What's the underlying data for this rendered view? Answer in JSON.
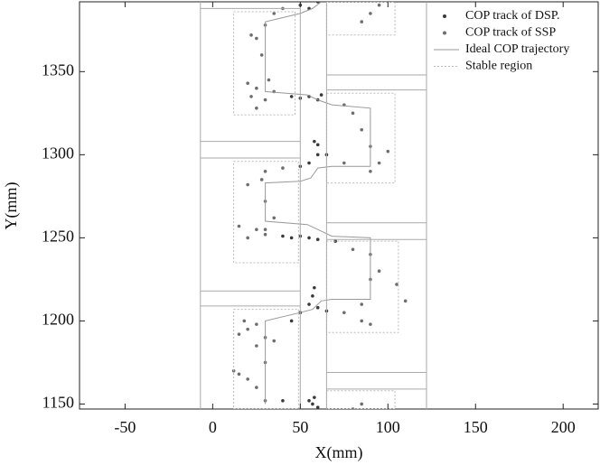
{
  "chart_data": {
    "type": "scatter",
    "xlabel": "X(mm)",
    "ylabel": "Y(mm)",
    "xlim": [
      -76,
      220
    ],
    "ylim": [
      1147,
      1392
    ],
    "xticks": [
      -50,
      0,
      50,
      100,
      150,
      200
    ],
    "yticks": [
      1150,
      1200,
      1250,
      1300,
      1350
    ],
    "legend": "upper right",
    "series": [
      {
        "name": "COP track of DSP.",
        "style": "points",
        "color": "#3a3a3a",
        "x": [
          55,
          58,
          57,
          60,
          40,
          45,
          50,
          55,
          58,
          57,
          60,
          65,
          70,
          60,
          55,
          50,
          45,
          40,
          50,
          55,
          60,
          58,
          60,
          65,
          55,
          50,
          45,
          60,
          62,
          50,
          55,
          60
        ],
        "y": [
          1152,
          1154,
          1150,
          1148,
          1152,
          1200,
          1205,
          1210,
          1220,
          1215,
          1208,
          1206,
          1248,
          1249,
          1250,
          1251,
          1250,
          1251,
          1293,
          1295,
          1300,
          1308,
          1306,
          1300,
          1335,
          1334,
          1335,
          1333,
          1336,
          1390,
          1388,
          1392
        ]
      },
      {
        "name": "COP track of SSP",
        "style": "points",
        "color": "#6e6e6e",
        "x": [
          80,
          85,
          30,
          25,
          15,
          12,
          20,
          30,
          25,
          20,
          15,
          18,
          25,
          30,
          35,
          75,
          85,
          90,
          85,
          90,
          95,
          105,
          110,
          90,
          80,
          30,
          25,
          15,
          20,
          30,
          35,
          30,
          28,
          20,
          30,
          40,
          75,
          90,
          95,
          100,
          90,
          85,
          80,
          75,
          35,
          25,
          20,
          22,
          25,
          30,
          32,
          28,
          25,
          22,
          30,
          35,
          40,
          85,
          90,
          95
        ],
        "y": [
          1147,
          1150,
          1152,
          1160,
          1168,
          1170,
          1165,
          1175,
          1185,
          1195,
          1192,
          1200,
          1198,
          1190,
          1188,
          1205,
          1200,
          1198,
          1210,
          1225,
          1230,
          1222,
          1212,
          1240,
          1243,
          1252,
          1255,
          1257,
          1250,
          1255,
          1262,
          1272,
          1285,
          1282,
          1290,
          1292,
          1295,
          1290,
          1295,
          1302,
          1305,
          1315,
          1325,
          1330,
          1338,
          1340,
          1343,
          1335,
          1328,
          1333,
          1345,
          1360,
          1370,
          1372,
          1378,
          1385,
          1388,
          1380,
          1385,
          1390
        ]
      },
      {
        "name": "Ideal COP trajectory",
        "style": "line",
        "color": "#999999",
        "x": [
          30,
          30,
          50,
          57,
          62,
          68,
          90,
          90,
          68,
          60,
          54,
          30,
          30,
          50,
          56,
          60,
          68,
          90,
          90,
          68,
          60,
          54,
          30,
          30,
          50,
          57,
          62
        ],
        "y": [
          1150,
          1200,
          1205,
          1207,
          1212,
          1213,
          1213,
          1250,
          1251,
          1255,
          1258,
          1260,
          1283,
          1284,
          1286,
          1292,
          1293,
          1293,
          1328,
          1330,
          1333,
          1336,
          1338,
          1380,
          1385,
          1388,
          1392
        ]
      },
      {
        "name": "Stable region",
        "style": "dotted",
        "color": "#bbbbbb",
        "x": [
          12,
          47,
          47,
          12,
          12,
          null,
          65,
          104,
          104,
          65,
          65,
          null,
          65,
          104,
          104,
          65,
          65,
          null,
          12,
          49,
          49,
          12,
          12,
          null,
          65,
          106,
          106,
          65,
          65,
          null,
          12,
          49,
          49,
          12,
          12,
          null,
          65,
          104,
          104,
          65,
          65
        ],
        "y": [
          1386,
          1386,
          1324,
          1324,
          1386,
          null,
          1392,
          1392,
          1372,
          1372,
          1392,
          null,
          1337,
          1337,
          1283,
          1283,
          1337,
          null,
          1296,
          1296,
          1235,
          1235,
          1296,
          null,
          1248,
          1248,
          1193,
          1193,
          1248,
          null,
          1207,
          1207,
          1147,
          1147,
          1207,
          null,
          1158,
          1158,
          1147,
          1147,
          1158
        ]
      },
      {
        "style": "line",
        "color": "#aaaaaa",
        "x": [
          -7,
          -7,
          null,
          50,
          50,
          null,
          65,
          65,
          null,
          122,
          122,
          null,
          -7,
          50,
          null,
          -7,
          50,
          null,
          -7,
          50,
          null,
          -7,
          50,
          null,
          -7,
          50,
          null,
          65,
          122,
          null,
          65,
          122,
          null,
          65,
          122,
          null,
          65,
          122,
          null,
          65,
          122,
          null,
          65,
          122
        ],
        "y": [
          1147,
          1392,
          null,
          1147,
          1392,
          null,
          1147,
          1392,
          null,
          1147,
          1392,
          null,
          1388,
          1388,
          null,
          1308,
          1308,
          null,
          1298,
          1298,
          null,
          1218,
          1218,
          null,
          1209,
          1209,
          null,
          1348,
          1348,
          null,
          1339,
          1339,
          null,
          1259,
          1259,
          null,
          1249,
          1249,
          null,
          1169,
          1169,
          null,
          1159,
          1159
        ]
      }
    ]
  }
}
